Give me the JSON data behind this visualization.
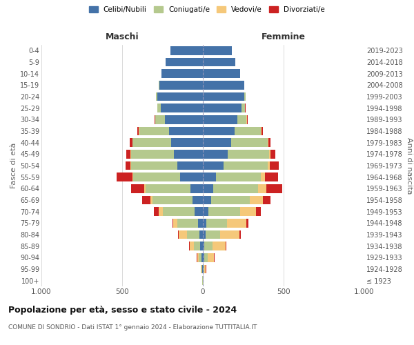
{
  "age_groups": [
    "100+",
    "95-99",
    "90-94",
    "85-89",
    "80-84",
    "75-79",
    "70-74",
    "65-69",
    "60-64",
    "55-59",
    "50-54",
    "45-49",
    "40-44",
    "35-39",
    "30-34",
    "25-29",
    "20-24",
    "15-19",
    "10-14",
    "5-9",
    "0-4"
  ],
  "birth_years": [
    "≤ 1923",
    "1924-1928",
    "1929-1933",
    "1934-1938",
    "1939-1943",
    "1944-1948",
    "1949-1953",
    "1954-1958",
    "1959-1963",
    "1964-1968",
    "1969-1973",
    "1974-1978",
    "1979-1983",
    "1984-1988",
    "1989-1993",
    "1994-1998",
    "1999-2003",
    "2004-2008",
    "2009-2013",
    "2014-2018",
    "2019-2023"
  ],
  "male_celibi": [
    2,
    5,
    10,
    15,
    20,
    30,
    50,
    65,
    75,
    140,
    160,
    180,
    195,
    210,
    235,
    260,
    280,
    270,
    255,
    230,
    200
  ],
  "male_coniugati": [
    1,
    5,
    15,
    40,
    80,
    130,
    200,
    245,
    280,
    290,
    285,
    265,
    240,
    185,
    60,
    20,
    10,
    5,
    0,
    0,
    0
  ],
  "male_vedovi": [
    0,
    2,
    10,
    25,
    50,
    25,
    25,
    15,
    10,
    5,
    5,
    3,
    2,
    1,
    1,
    0,
    0,
    0,
    0,
    0,
    0
  ],
  "male_divorziati": [
    0,
    0,
    2,
    5,
    5,
    5,
    30,
    50,
    80,
    100,
    30,
    25,
    15,
    10,
    5,
    2,
    1,
    0,
    0,
    0,
    0
  ],
  "female_celibi": [
    2,
    5,
    8,
    10,
    15,
    20,
    35,
    50,
    65,
    80,
    130,
    155,
    175,
    195,
    215,
    240,
    255,
    255,
    230,
    200,
    180
  ],
  "female_coniugati": [
    1,
    5,
    20,
    50,
    90,
    130,
    195,
    240,
    275,
    280,
    270,
    255,
    225,
    165,
    55,
    20,
    8,
    3,
    0,
    0,
    0
  ],
  "female_vedovi": [
    1,
    8,
    40,
    80,
    120,
    120,
    100,
    80,
    55,
    25,
    15,
    10,
    5,
    3,
    2,
    1,
    0,
    0,
    0,
    0,
    0
  ],
  "female_divorziati": [
    0,
    2,
    5,
    5,
    10,
    10,
    30,
    50,
    95,
    80,
    55,
    30,
    15,
    10,
    5,
    2,
    1,
    0,
    0,
    0,
    0
  ],
  "color_celibi": "#4472a8",
  "color_coniugati": "#b5c98e",
  "color_vedovi": "#f5c87a",
  "color_divorziati": "#cc2222",
  "title": "Popolazione per età, sesso e stato civile - 2024",
  "subtitle": "COMUNE DI SONDRIO - Dati ISTAT 1° gennaio 2024 - Elaborazione TUTTITALIA.IT",
  "ylabel_left": "Fasce di età",
  "ylabel_right": "Anni di nascita",
  "xlabel_left": "Maschi",
  "xlabel_right": "Femmine",
  "xlim": 1000,
  "bg_color": "#ffffff",
  "grid_color": "#cccccc"
}
